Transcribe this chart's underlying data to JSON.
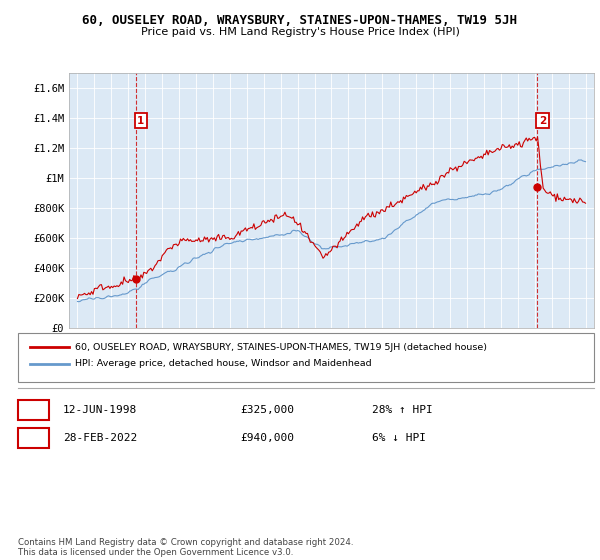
{
  "title": "60, OUSELEY ROAD, WRAYSBURY, STAINES-UPON-THAMES, TW19 5JH",
  "subtitle": "Price paid vs. HM Land Registry's House Price Index (HPI)",
  "ylim": [
    0,
    1700000
  ],
  "xlim": [
    1994.5,
    2025.5
  ],
  "yticks": [
    0,
    200000,
    400000,
    600000,
    800000,
    1000000,
    1200000,
    1400000,
    1600000
  ],
  "ytick_labels": [
    "£0",
    "£200K",
    "£400K",
    "£600K",
    "£800K",
    "£1M",
    "£1.2M",
    "£1.4M",
    "£1.6M"
  ],
  "xticks": [
    1995,
    1996,
    1997,
    1998,
    1999,
    2000,
    2001,
    2002,
    2003,
    2004,
    2005,
    2006,
    2007,
    2008,
    2009,
    2010,
    2011,
    2012,
    2013,
    2014,
    2015,
    2016,
    2017,
    2018,
    2019,
    2020,
    2021,
    2022,
    2023,
    2024,
    2025
  ],
  "red_line_color": "#cc0000",
  "blue_line_color": "#6699cc",
  "chart_bg_color": "#dce9f5",
  "marker1_x": 1998.44,
  "marker1_y": 325000,
  "marker2_x": 2022.16,
  "marker2_y": 940000,
  "legend_red": "60, OUSELEY ROAD, WRAYSBURY, STAINES-UPON-THAMES, TW19 5JH (detached house)",
  "legend_blue": "HPI: Average price, detached house, Windsor and Maidenhead",
  "table_rows": [
    {
      "num": "1",
      "date": "12-JUN-1998",
      "price": "£325,000",
      "hpi": "28% ↑ HPI"
    },
    {
      "num": "2",
      "date": "28-FEB-2022",
      "price": "£940,000",
      "hpi": "6% ↓ HPI"
    }
  ],
  "footer": "Contains HM Land Registry data © Crown copyright and database right 2024.\nThis data is licensed under the Open Government Licence v3.0.",
  "background_color": "#ffffff",
  "grid_color": "#ffffff"
}
